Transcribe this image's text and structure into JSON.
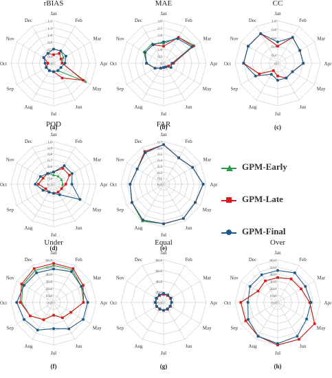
{
  "months": [
    "Jan",
    "Feb",
    "Mar",
    "Apr",
    "May",
    "Jun",
    "Jul",
    "Aug",
    "Sep",
    "Oct",
    "Nov",
    "Dec"
  ],
  "legend": [
    {
      "name": "GPM-Early",
      "color": "#2e9a46",
      "marker": "triangle"
    },
    {
      "name": "GPM-Late",
      "color": "#d7191c",
      "marker": "square"
    },
    {
      "name": "GPM-Final",
      "color": "#1f5a85",
      "marker": "circle"
    }
  ],
  "chart_data": [
    {
      "type": "radar",
      "id": "a",
      "title": "rBIAS",
      "label": "(a)",
      "rlim": [
        0,
        1.5
      ],
      "ticks": [
        "0",
        "0.3",
        "0.5",
        "0.8",
        "1.0",
        "1.3",
        "1.5"
      ],
      "series": [
        {
          "name": "GPM-Early",
          "values": [
            0.5,
            0.5,
            0.4,
            0.3,
            1.3,
            0.3,
            0.3,
            0.3,
            0.3,
            0.2,
            0.4,
            0.4
          ]
        },
        {
          "name": "GPM-Late",
          "values": [
            0.3,
            0.4,
            0.3,
            0.3,
            1.2,
            0.6,
            0.3,
            0.3,
            0.3,
            0.2,
            0.4,
            0.4
          ]
        },
        {
          "name": "GPM-Final",
          "values": [
            0.5,
            0.5,
            0.5,
            0.4,
            0.3,
            0.3,
            0.3,
            0.3,
            0.3,
            0.3,
            0.4,
            0.4
          ]
        }
      ]
    },
    {
      "type": "radar",
      "id": "b",
      "title": "MAE",
      "label": "(b)",
      "rlim": [
        0,
        3
      ],
      "ticks": [
        "0",
        "0.5",
        "1.0",
        "1.5",
        "2.0",
        "2.5",
        "3.0"
      ],
      "series": [
        {
          "name": "GPM-Early",
          "values": [
            1.4,
            2.1,
            2.5,
            0.7,
            0.4,
            0.3,
            0.3,
            0.4,
            0.7,
            1.2,
            1.6,
            1.6
          ]
        },
        {
          "name": "GPM-Late",
          "values": [
            1.2,
            2.1,
            2.4,
            0.7,
            0.4,
            0.3,
            0.3,
            0.4,
            0.7,
            1.2,
            1.5,
            1.5
          ]
        },
        {
          "name": "GPM-Final",
          "values": [
            1.5,
            2.0,
            2.3,
            0.6,
            0.6,
            0.3,
            0.3,
            0.4,
            0.7,
            1.2,
            1.5,
            1.5
          ]
        }
      ]
    },
    {
      "type": "radar",
      "id": "c",
      "title": "CC",
      "label": "(c)",
      "rlim": [
        0,
        1
      ],
      "ticks": [
        "0",
        "0.2",
        "0.4",
        "0.6",
        "0.8",
        "1.0"
      ],
      "series": [
        {
          "name": "GPM-Early",
          "values": [
            0.4,
            0.7,
            0.6,
            0.6,
            0.4,
            0.4,
            0.3,
            0.2,
            0.5,
            0.8,
            0.8,
            0.8
          ]
        },
        {
          "name": "GPM-Late",
          "values": [
            0.4,
            0.7,
            0.6,
            0.6,
            0.4,
            0.4,
            0.3,
            0.2,
            0.5,
            0.8,
            0.8,
            0.8
          ]
        },
        {
          "name": "GPM-Final",
          "values": [
            0.5,
            0.7,
            0.6,
            0.6,
            0.4,
            0.4,
            0.4,
            0.3,
            0.6,
            0.8,
            0.8,
            0.8
          ]
        }
      ]
    },
    {
      "type": "radar",
      "id": "d",
      "title": "POD",
      "label": "(d)",
      "rlim": [
        0.3,
        1
      ],
      "ticks": [
        "0.3",
        "0.4",
        "0.5",
        "0.6",
        "0.7",
        "0.8",
        "0.9",
        "1.0"
      ],
      "series": [
        {
          "name": "GPM-Early",
          "values": [
            0.45,
            0.45,
            0.45,
            0.45,
            0.45,
            0.45,
            0.45,
            0.45,
            0.45,
            0.55,
            0.5,
            0.5
          ]
        },
        {
          "name": "GPM-Late",
          "values": [
            0.5,
            0.6,
            0.6,
            0.5,
            0.45,
            0.45,
            0.45,
            0.45,
            0.45,
            0.55,
            0.5,
            0.5
          ]
        },
        {
          "name": "GPM-Final",
          "values": [
            0.5,
            0.65,
            0.65,
            0.6,
            0.8,
            0.5,
            0.45,
            0.45,
            0.5,
            0.6,
            0.55,
            0.5
          ]
        }
      ]
    },
    {
      "type": "radar",
      "id": "e",
      "title": "FAR",
      "label": "(e)",
      "rlim": [
        0,
        0.7
      ],
      "ticks": [
        "0.0",
        "0.1",
        "0.2",
        "0.3",
        "0.4",
        "0.5",
        "0.6",
        "0.7"
      ],
      "series": [
        {
          "name": "GPM-Early",
          "values": [
            0.65,
            0.5,
            0.55,
            0.65,
            0.6,
            0.65,
            0.65,
            0.7,
            0.6,
            0.55,
            0.5,
            0.6
          ]
        },
        {
          "name": "GPM-Late",
          "values": [
            0.65,
            0.5,
            0.55,
            0.65,
            0.6,
            0.65,
            0.65,
            0.68,
            0.6,
            0.55,
            0.5,
            0.62
          ]
        },
        {
          "name": "GPM-Final",
          "values": [
            0.65,
            0.5,
            0.55,
            0.65,
            0.6,
            0.65,
            0.65,
            0.68,
            0.6,
            0.55,
            0.5,
            0.6
          ]
        }
      ]
    },
    {
      "type": "radar",
      "id": "f",
      "title": "Under",
      "label": "(f)",
      "rlim": [
        0,
        60
      ],
      "ticks": [
        "0.0",
        "10.0",
        "20.0",
        "30.0",
        "40.0",
        "50.0",
        "60.0"
      ],
      "series": [
        {
          "name": "GPM-Early",
          "values": [
            52,
            53,
            45,
            42,
            28,
            25,
            18,
            28,
            38,
            45,
            50,
            52
          ]
        },
        {
          "name": "GPM-Late",
          "values": [
            55,
            55,
            48,
            42,
            28,
            25,
            18,
            28,
            38,
            47,
            52,
            55
          ]
        },
        {
          "name": "GPM-Final",
          "values": [
            47,
            50,
            45,
            48,
            48,
            43,
            37,
            45,
            48,
            52,
            48,
            48
          ]
        }
      ]
    },
    {
      "type": "radar",
      "id": "g",
      "title": "Equal",
      "label": "(g)",
      "rlim": [
        0,
        80
      ],
      "ticks": [
        "0.0",
        "20.0",
        "40.0",
        "60.0",
        "80.0"
      ],
      "series": [
        {
          "name": "GPM-Early",
          "values": [
            15,
            15,
            15,
            15,
            15,
            15,
            15,
            15,
            15,
            15,
            15,
            15
          ]
        },
        {
          "name": "GPM-Late",
          "values": [
            15,
            15,
            15,
            15,
            15,
            15,
            15,
            15,
            15,
            15,
            15,
            15
          ]
        },
        {
          "name": "GPM-Final",
          "values": [
            17,
            16,
            16,
            15,
            14,
            14,
            15,
            14,
            15,
            16,
            16,
            16
          ]
        }
      ]
    },
    {
      "type": "radar",
      "id": "h",
      "title": "Over",
      "label": "(h)",
      "rlim": [
        0,
        60
      ],
      "ticks": [
        "0.0",
        "10.0",
        "20.0",
        "30.0",
        "40.0",
        "50.0",
        "60.0"
      ],
      "series": [
        {
          "name": "GPM-Early",
          "values": [
            35,
            38,
            38,
            45,
            60,
            60,
            60,
            55,
            52,
            52,
            32,
            35
          ]
        },
        {
          "name": "GPM-Late",
          "values": [
            35,
            38,
            38,
            45,
            60,
            60,
            60,
            55,
            52,
            52,
            32,
            35
          ]
        },
        {
          "name": "GPM-Final",
          "values": [
            45,
            48,
            45,
            47,
            47,
            55,
            58,
            55,
            48,
            42,
            45,
            45
          ]
        }
      ]
    }
  ]
}
